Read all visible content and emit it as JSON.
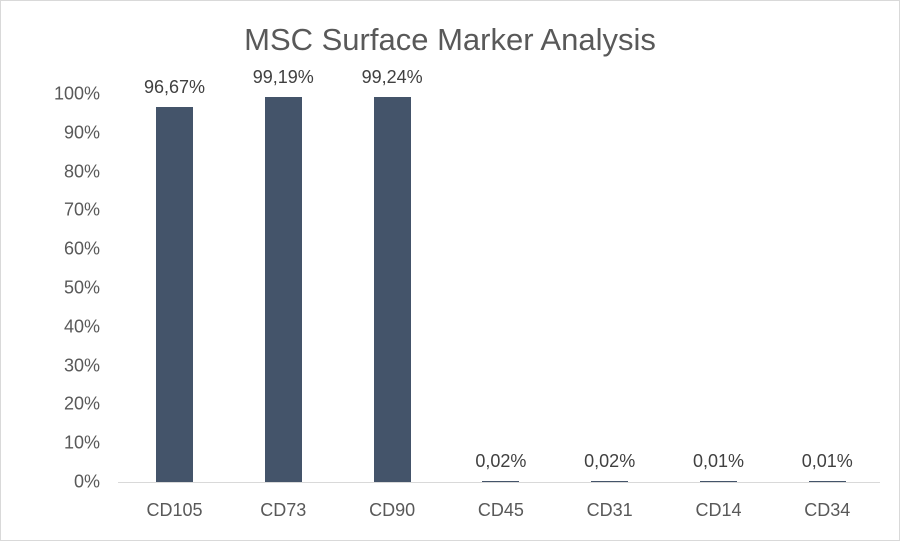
{
  "chart_data": {
    "type": "bar",
    "title": "MSC Surface Marker Analysis",
    "xlabel": "",
    "ylabel": "",
    "categories": [
      "CD105",
      "CD73",
      "CD90",
      "CD45",
      "CD31",
      "CD14",
      "CD34"
    ],
    "values": [
      96.67,
      99.19,
      99.24,
      0.02,
      0.02,
      0.01,
      0.01
    ],
    "data_labels": [
      "96,67%",
      "99,19%",
      "99,24%",
      "0,02%",
      "0,02%",
      "0,01%",
      "0,01%"
    ],
    "ylim": [
      0,
      100
    ],
    "yticks": [
      "0%",
      "10%",
      "20%",
      "30%",
      "40%",
      "50%",
      "60%",
      "70%",
      "80%",
      "90%",
      "100%"
    ],
    "grid": false,
    "legend": null,
    "bar_color": "#44546a"
  }
}
